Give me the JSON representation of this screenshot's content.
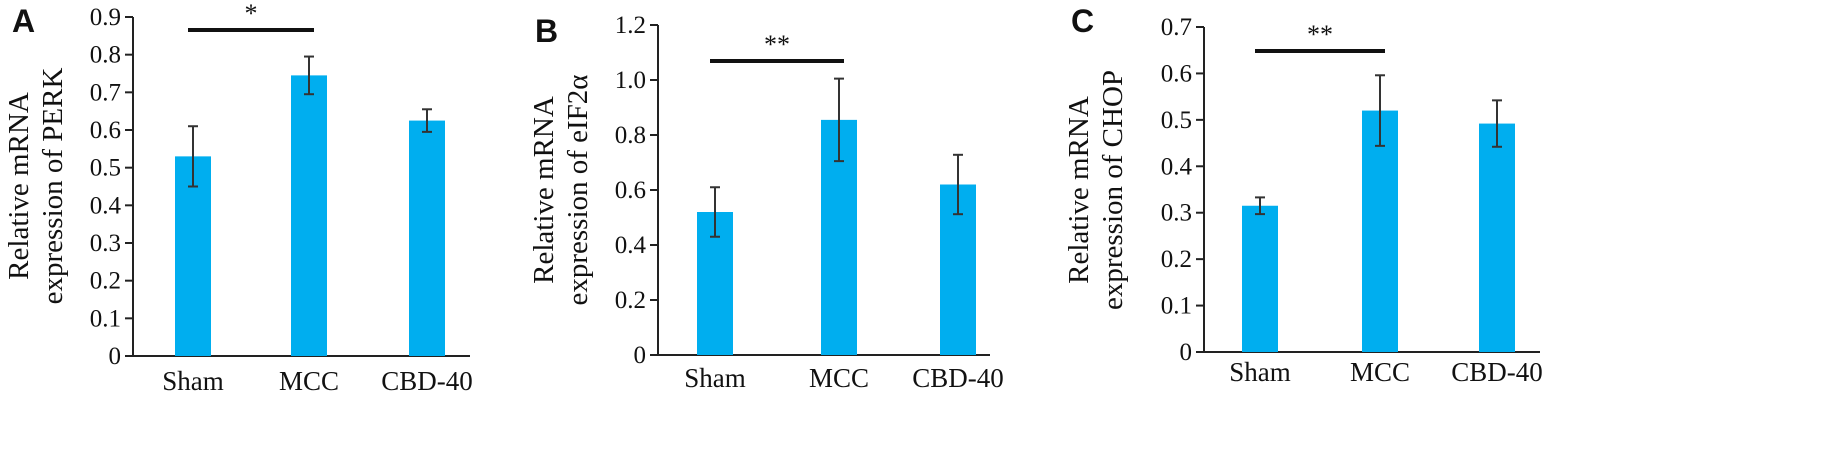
{
  "chart_data": [
    {
      "type": "bar",
      "panel": "A",
      "categories": [
        "Sham",
        "MCC",
        "CBD-40"
      ],
      "values": [
        0.53,
        0.745,
        0.625
      ],
      "errors": [
        0.08,
        0.05,
        0.03
      ],
      "ylabel_lines": [
        "Relative mRNA",
        "expression of PERK"
      ],
      "ylim": [
        0,
        0.9
      ],
      "yticks": [
        "0",
        "0.1",
        "0.2",
        "0.3",
        "0.4",
        "0.5",
        "0.6",
        "0.7",
        "0.8",
        "0.9"
      ],
      "significance": {
        "from": 0,
        "to": 1,
        "label": "*"
      },
      "bar_color": "#00AEEF"
    },
    {
      "type": "bar",
      "panel": "B",
      "categories": [
        "Sham",
        "MCC",
        "CBD-40"
      ],
      "values": [
        0.52,
        0.855,
        0.62
      ],
      "errors": [
        0.09,
        0.15,
        0.108
      ],
      "ylabel_lines": [
        "Relative mRNA",
        "expression of eIF2α"
      ],
      "ylim": [
        0,
        1.2
      ],
      "yticks": [
        "0",
        "0.2",
        "0.4",
        "0.6",
        "0.8",
        "1.0",
        "1.2"
      ],
      "significance": {
        "from": 0,
        "to": 1,
        "label": "**"
      },
      "bar_color": "#00AEEF"
    },
    {
      "type": "bar",
      "panel": "C",
      "categories": [
        "Sham",
        "MCC",
        "CBD-40"
      ],
      "values": [
        0.315,
        0.52,
        0.492
      ],
      "errors": [
        0.018,
        0.076,
        0.05
      ],
      "ylabel_lines": [
        "Relative mRNA",
        "expression of CHOP"
      ],
      "ylim": [
        0,
        0.7
      ],
      "yticks": [
        "0",
        "0.1",
        "0.2",
        "0.3",
        "0.4",
        "0.5",
        "0.6",
        "0.7"
      ],
      "significance": {
        "from": 0,
        "to": 1,
        "label": "**"
      },
      "bar_color": "#00AEEF"
    }
  ]
}
